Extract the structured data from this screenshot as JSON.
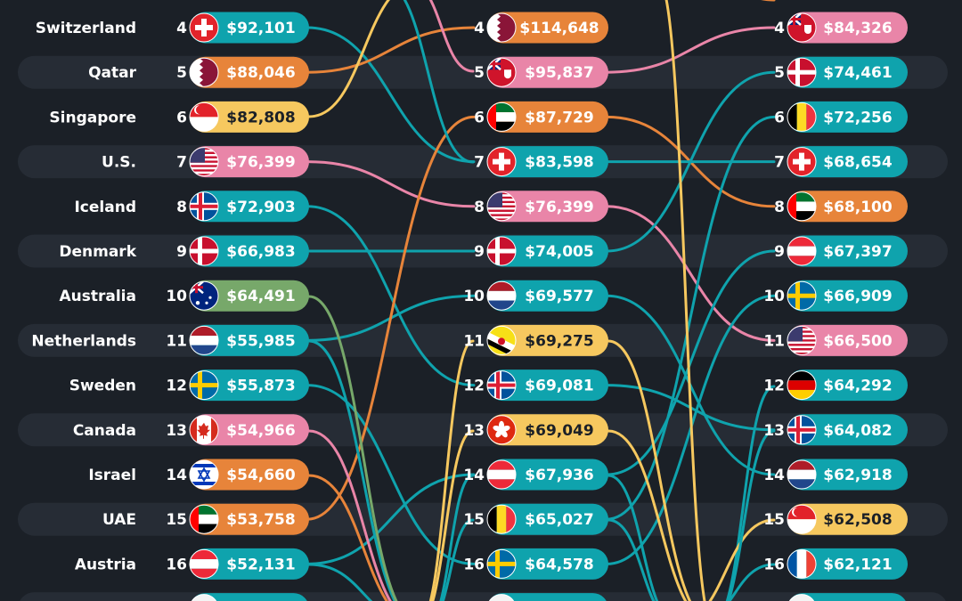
{
  "theme": {
    "background": "#1b2027",
    "stripe": "#262c35",
    "colors": {
      "teal": "#0fa3ad",
      "orange": "#e7843a",
      "pink": "#e985a8",
      "yellow": "#f6c85f",
      "green": "#77a86a"
    }
  },
  "chart_data": {
    "type": "table",
    "rows": [
      {
        "country": "Switzerland",
        "rank": "4"
      },
      {
        "country": "Qatar",
        "rank": "5"
      },
      {
        "country": "Singapore",
        "rank": "6"
      },
      {
        "country": "U.S.",
        "rank": "7"
      },
      {
        "country": "Iceland",
        "rank": "8"
      },
      {
        "country": "Denmark",
        "rank": "9"
      },
      {
        "country": "Australia",
        "rank": "10"
      },
      {
        "country": "Netherlands",
        "rank": "11"
      },
      {
        "country": "Sweden",
        "rank": "12"
      },
      {
        "country": "Canada",
        "rank": "13"
      },
      {
        "country": "Israel",
        "rank": "14"
      },
      {
        "country": "UAE",
        "rank": "15"
      },
      {
        "country": "Austria",
        "rank": "16"
      }
    ],
    "columns": [
      {
        "entries": [
          {
            "rank": "4",
            "value": "$92,101",
            "flag": "switzerland",
            "color": "teal"
          },
          {
            "rank": "5",
            "value": "$88,046",
            "flag": "qatar",
            "color": "orange"
          },
          {
            "rank": "6",
            "value": "$82,808",
            "flag": "singapore",
            "color": "yellow"
          },
          {
            "rank": "7",
            "value": "$76,399",
            "flag": "usa",
            "color": "pink"
          },
          {
            "rank": "8",
            "value": "$72,903",
            "flag": "iceland",
            "color": "teal"
          },
          {
            "rank": "9",
            "value": "$66,983",
            "flag": "denmark",
            "color": "teal"
          },
          {
            "rank": "10",
            "value": "$64,491",
            "flag": "australia",
            "color": "green"
          },
          {
            "rank": "11",
            "value": "$55,985",
            "flag": "netherlands",
            "color": "teal"
          },
          {
            "rank": "12",
            "value": "$55,873",
            "flag": "sweden",
            "color": "teal"
          },
          {
            "rank": "13",
            "value": "$54,966",
            "flag": "canada",
            "color": "pink"
          },
          {
            "rank": "14",
            "value": "$54,660",
            "flag": "israel",
            "color": "orange"
          },
          {
            "rank": "15",
            "value": "$53,758",
            "flag": "uae",
            "color": "orange"
          },
          {
            "rank": "16",
            "value": "$52,131",
            "flag": "austria",
            "color": "teal"
          }
        ]
      },
      {
        "entries": [
          {
            "rank": "4",
            "value": "$114,648",
            "flag": "qatar",
            "color": "orange"
          },
          {
            "rank": "5",
            "value": "$95,837",
            "flag": "bermuda",
            "color": "pink"
          },
          {
            "rank": "6",
            "value": "$87,729",
            "flag": "uae",
            "color": "orange"
          },
          {
            "rank": "7",
            "value": "$83,598",
            "flag": "switzerland",
            "color": "teal"
          },
          {
            "rank": "8",
            "value": "$76,399",
            "flag": "usa",
            "color": "pink"
          },
          {
            "rank": "9",
            "value": "$74,005",
            "flag": "denmark",
            "color": "teal"
          },
          {
            "rank": "10",
            "value": "$69,577",
            "flag": "netherlands",
            "color": "teal"
          },
          {
            "rank": "11",
            "value": "$69,275",
            "flag": "brunei",
            "color": "yellow"
          },
          {
            "rank": "12",
            "value": "$69,081",
            "flag": "iceland",
            "color": "teal"
          },
          {
            "rank": "13",
            "value": "$69,049",
            "flag": "hongkong",
            "color": "yellow"
          },
          {
            "rank": "14",
            "value": "$67,936",
            "flag": "austria",
            "color": "teal"
          },
          {
            "rank": "15",
            "value": "$65,027",
            "flag": "belgium",
            "color": "teal"
          },
          {
            "rank": "16",
            "value": "$64,578",
            "flag": "sweden",
            "color": "teal"
          }
        ]
      },
      {
        "entries": [
          {
            "rank": "4",
            "value": "$84,326",
            "flag": "bermuda",
            "color": "pink"
          },
          {
            "rank": "5",
            "value": "$74,461",
            "flag": "denmark",
            "color": "teal"
          },
          {
            "rank": "6",
            "value": "$72,256",
            "flag": "belgium",
            "color": "teal"
          },
          {
            "rank": "7",
            "value": "$68,654",
            "flag": "switzerland",
            "color": "teal"
          },
          {
            "rank": "8",
            "value": "$68,100",
            "flag": "uae",
            "color": "orange"
          },
          {
            "rank": "9",
            "value": "$67,397",
            "flag": "austria",
            "color": "teal"
          },
          {
            "rank": "10",
            "value": "$66,909",
            "flag": "sweden",
            "color": "teal"
          },
          {
            "rank": "11",
            "value": "$66,500",
            "flag": "usa",
            "color": "pink"
          },
          {
            "rank": "12",
            "value": "$64,292",
            "flag": "germany",
            "color": "teal"
          },
          {
            "rank": "13",
            "value": "$64,082",
            "flag": "iceland",
            "color": "teal"
          },
          {
            "rank": "14",
            "value": "$62,918",
            "flag": "netherlands",
            "color": "teal"
          },
          {
            "rank": "15",
            "value": "$62,508",
            "flag": "singapore",
            "color": "yellow"
          },
          {
            "rank": "16",
            "value": "$62,121",
            "flag": "france",
            "color": "teal"
          }
        ]
      }
    ]
  }
}
